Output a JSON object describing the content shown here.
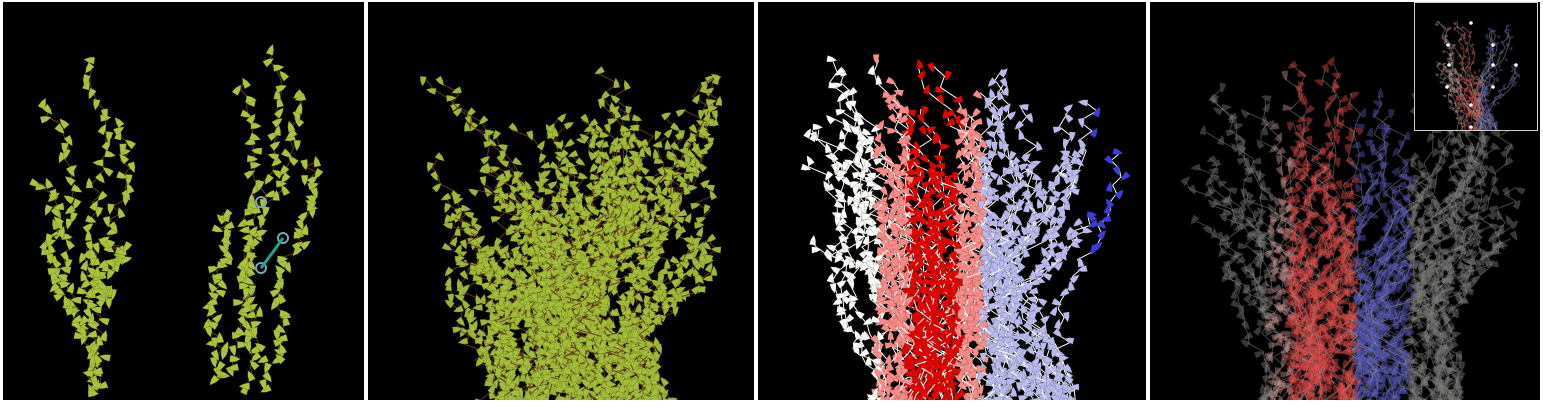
{
  "figure": {
    "panels": [
      {
        "id": "p1",
        "content": "two-vine-sketches",
        "leaf_color": "#a9c33a",
        "stem_color": "#6b3a1e",
        "marker_color": "#7aa6b8",
        "link_color": "#1fa58a"
      },
      {
        "id": "p2",
        "content": "dense-vine-mass",
        "leaf_color": "#a4bf38",
        "stem_color": "#6b3a1e"
      },
      {
        "id": "p3",
        "content": "vine-mass-diverging-colormap",
        "colors": [
          "#e60000",
          "#ff8a8a",
          "#ffffff",
          "#b9b9f2",
          "#3b3be0"
        ]
      },
      {
        "id": "p4",
        "content": "vine-mass-translucent",
        "colors": [
          "#e64545",
          "#c89090",
          "#7b7b7b",
          "#5252b8"
        ],
        "inset": {
          "content": "overview-with-points",
          "point_color": "#ffffff"
        }
      }
    ]
  }
}
